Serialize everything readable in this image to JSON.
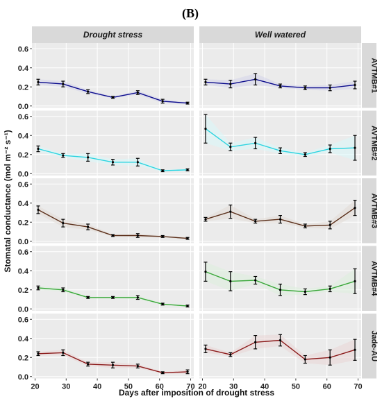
{
  "figure_label": "(B)",
  "chart_data": {
    "type": "line",
    "facet_columns": [
      "Drought stress",
      "Well watered"
    ],
    "facet_rows": [
      "AVTMB#1",
      "AVTMB#2",
      "AVTMB#3",
      "AVTMB#4",
      "Jade-AU"
    ],
    "xlabel": "Days after imposition of drought stress",
    "ylabel": "Stomatal conductance (mol m⁻² s⁻¹)",
    "x": [
      21,
      29,
      37,
      45,
      53,
      61,
      69
    ],
    "xlim": [
      19,
      71
    ],
    "xticks": [
      20,
      30,
      40,
      50,
      60,
      70
    ],
    "ylim": [
      -0.02,
      0.66
    ],
    "yticks": [
      0.0,
      0.2,
      0.4,
      0.6
    ],
    "ytick_labels": [
      "0.0",
      "0.2",
      "0.4",
      "0.6"
    ],
    "colors": {
      "AVTMB#1": "#0a0a8c",
      "AVTMB#2": "#2bd4e0",
      "AVTMB#3": "#5b2f1a",
      "AVTMB#4": "#3aa83a",
      "Jade-AU": "#8b1a1a"
    },
    "panel_background": "#ebebeb",
    "strip_background": "#d9d9d9",
    "grid": true,
    "series": [
      {
        "row": "AVTMB#1",
        "column": "Drought stress",
        "values": [
          0.25,
          0.23,
          0.15,
          0.09,
          0.14,
          0.05,
          0.03
        ],
        "errors": [
          0.03,
          0.03,
          0.02,
          0.01,
          0.02,
          0.02,
          0.01
        ]
      },
      {
        "row": "AVTMB#1",
        "column": "Well watered",
        "values": [
          0.25,
          0.23,
          0.28,
          0.21,
          0.19,
          0.19,
          0.22
        ],
        "errors": [
          0.03,
          0.04,
          0.06,
          0.02,
          0.02,
          0.03,
          0.04
        ]
      },
      {
        "row": "AVTMB#2",
        "column": "Drought stress",
        "values": [
          0.26,
          0.19,
          0.17,
          0.12,
          0.12,
          0.03,
          0.04
        ],
        "errors": [
          0.03,
          0.02,
          0.04,
          0.03,
          0.04,
          0.01,
          0.01
        ]
      },
      {
        "row": "AVTMB#2",
        "column": "Well watered",
        "values": [
          0.47,
          0.28,
          0.32,
          0.24,
          0.2,
          0.26,
          0.27
        ],
        "errors": [
          0.15,
          0.04,
          0.06,
          0.03,
          0.02,
          0.04,
          0.13
        ]
      },
      {
        "row": "AVTMB#3",
        "column": "Drought stress",
        "values": [
          0.33,
          0.19,
          0.15,
          0.06,
          0.06,
          0.05,
          0.03
        ],
        "errors": [
          0.04,
          0.04,
          0.03,
          0.01,
          0.02,
          0.01,
          0.01
        ]
      },
      {
        "row": "AVTMB#3",
        "column": "Well watered",
        "values": [
          0.23,
          0.31,
          0.21,
          0.23,
          0.16,
          0.17,
          0.35
        ],
        "errors": [
          0.02,
          0.07,
          0.02,
          0.04,
          0.02,
          0.04,
          0.08
        ]
      },
      {
        "row": "AVTMB#4",
        "column": "Drought stress",
        "values": [
          0.22,
          0.2,
          0.12,
          0.12,
          0.12,
          0.05,
          0.03
        ],
        "errors": [
          0.02,
          0.02,
          0.01,
          0.01,
          0.02,
          0.01,
          0.01
        ]
      },
      {
        "row": "AVTMB#4",
        "column": "Well watered",
        "values": [
          0.39,
          0.29,
          0.3,
          0.2,
          0.18,
          0.21,
          0.29
        ],
        "errors": [
          0.1,
          0.1,
          0.04,
          0.06,
          0.03,
          0.03,
          0.13
        ]
      },
      {
        "row": "Jade-AU",
        "column": "Drought stress",
        "values": [
          0.24,
          0.25,
          0.13,
          0.12,
          0.11,
          0.04,
          0.05
        ],
        "errors": [
          0.02,
          0.03,
          0.02,
          0.03,
          0.02,
          0.01,
          0.02
        ]
      },
      {
        "row": "Jade-AU",
        "column": "Well watered",
        "values": [
          0.29,
          0.23,
          0.36,
          0.38,
          0.18,
          0.2,
          0.28
        ],
        "errors": [
          0.04,
          0.02,
          0.07,
          0.06,
          0.04,
          0.08,
          0.11
        ]
      }
    ]
  }
}
